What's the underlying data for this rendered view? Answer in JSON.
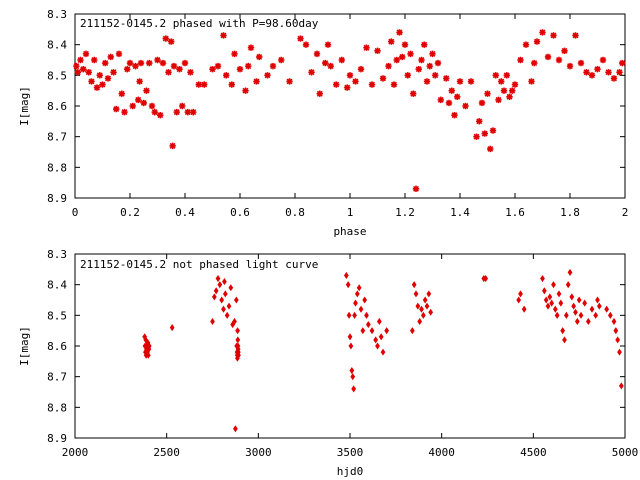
{
  "colors": {
    "points": "#e00000",
    "frame": "#000000",
    "background": "#ffffff"
  },
  "chart_data": [
    {
      "type": "scatter",
      "title": "211152-0145.2 phased with P=98.60day",
      "xlabel": "phase",
      "ylabel": "I[mag]",
      "xlim": [
        0,
        2
      ],
      "ylim": [
        8.3,
        8.9
      ],
      "y_inverted": true,
      "grid": false,
      "marker": "star",
      "xticks": [
        "0",
        "0.2",
        "0.4",
        "0.6",
        "0.8",
        "1",
        "1.2",
        "1.4",
        "1.6",
        "1.8",
        "2"
      ],
      "yticks": [
        "8.3",
        "8.4",
        "8.5",
        "8.6",
        "8.7",
        "8.8",
        "8.9"
      ],
      "series": [
        {
          "x": [
            0.005,
            0.01,
            0.02,
            0.03,
            0.04,
            0.05,
            0.06,
            0.07,
            0.08,
            0.09,
            0.1,
            0.11,
            0.12,
            0.13,
            0.14,
            0.15,
            0.16,
            0.17,
            0.18,
            0.19,
            0.2,
            0.21,
            0.22,
            0.23,
            0.235,
            0.24,
            0.25,
            0.26,
            0.27,
            0.28,
            0.29,
            0.3,
            0.31,
            0.32,
            0.33,
            0.34,
            0.35,
            0.355,
            0.36,
            0.37,
            0.38,
            0.39,
            0.4,
            0.41,
            0.42,
            0.43,
            0.45,
            0.47,
            0.5,
            0.52,
            0.54,
            0.55,
            0.57,
            0.58,
            0.6,
            0.62,
            0.63,
            0.64,
            0.66,
            0.67,
            0.7,
            0.72,
            0.75,
            0.78,
            0.82,
            0.84,
            0.86,
            0.88,
            0.89,
            0.91,
            0.92,
            0.93,
            0.95,
            0.97,
            0.99,
            1.0,
            1.02,
            1.04,
            1.06,
            1.08,
            1.1,
            1.12,
            1.14,
            1.15,
            1.16,
            1.17,
            1.18,
            1.19,
            1.2,
            1.21,
            1.22,
            1.23,
            1.24,
            1.25,
            1.26,
            1.27,
            1.28,
            1.29,
            1.3,
            1.31,
            1.32,
            1.33,
            1.35,
            1.36,
            1.37,
            1.38,
            1.39,
            1.4,
            1.42,
            1.44,
            1.46,
            1.47,
            1.48,
            1.49,
            1.5,
            1.51,
            1.52,
            1.53,
            1.54,
            1.55,
            1.56,
            1.57,
            1.58,
            1.59,
            1.6,
            1.62,
            1.64,
            1.66,
            1.67,
            1.68,
            1.7,
            1.72,
            1.74,
            1.76,
            1.78,
            1.8,
            1.82,
            1.84,
            1.86,
            1.88,
            1.9,
            1.92,
            1.94,
            1.96,
            1.98,
            1.99
          ],
          "y": [
            8.47,
            8.49,
            8.45,
            8.48,
            8.43,
            8.49,
            8.52,
            8.45,
            8.54,
            8.5,
            8.53,
            8.46,
            8.51,
            8.44,
            8.49,
            8.61,
            8.43,
            8.56,
            8.62,
            8.48,
            8.46,
            8.6,
            8.47,
            8.58,
            8.52,
            8.46,
            8.59,
            8.55,
            8.46,
            8.6,
            8.62,
            8.45,
            8.63,
            8.46,
            8.38,
            8.49,
            8.39,
            8.73,
            8.47,
            8.62,
            8.48,
            8.6,
            8.46,
            8.62,
            8.49,
            8.62,
            8.53,
            8.53,
            8.48,
            8.47,
            8.37,
            8.5,
            8.53,
            8.43,
            8.48,
            8.55,
            8.47,
            8.41,
            8.52,
            8.44,
            8.5,
            8.47,
            8.45,
            8.52,
            8.38,
            8.4,
            8.49,
            8.43,
            8.56,
            8.46,
            8.4,
            8.47,
            8.53,
            8.45,
            8.54,
            8.5,
            8.52,
            8.48,
            8.41,
            8.53,
            8.42,
            8.51,
            8.47,
            8.39,
            8.53,
            8.45,
            8.36,
            8.44,
            8.4,
            8.5,
            8.43,
            8.56,
            8.87,
            8.48,
            8.45,
            8.4,
            8.52,
            8.47,
            8.43,
            8.5,
            8.46,
            8.58,
            8.51,
            8.59,
            8.55,
            8.63,
            8.57,
            8.52,
            8.6,
            8.52,
            8.7,
            8.65,
            8.59,
            8.69,
            8.56,
            8.74,
            8.68,
            8.5,
            8.58,
            8.52,
            8.55,
            8.5,
            8.57,
            8.55,
            8.53,
            8.45,
            8.4,
            8.52,
            8.46,
            8.39,
            8.36,
            8.44,
            8.37,
            8.45,
            8.42,
            8.47,
            8.37,
            8.46,
            8.49,
            8.5,
            8.48,
            8.45,
            8.49,
            8.51,
            8.49,
            8.46
          ]
        }
      ]
    },
    {
      "type": "scatter",
      "title": "211152-0145.2 not phased light curve",
      "xlabel": "hjd0",
      "ylabel": "I[mag]",
      "xlim": [
        2000,
        5000
      ],
      "ylim": [
        8.3,
        8.9
      ],
      "y_inverted": true,
      "grid": false,
      "marker": "diamond",
      "xticks": [
        "2000",
        "2500",
        "3000",
        "3500",
        "4000",
        "4500",
        "5000"
      ],
      "yticks": [
        "8.3",
        "8.4",
        "8.5",
        "8.6",
        "8.7",
        "8.8",
        "8.9"
      ],
      "series": [
        {
          "x": [
            2380,
            2382,
            2384,
            2386,
            2388,
            2390,
            2392,
            2395,
            2398,
            2400,
            2403,
            2405,
            2530,
            2750,
            2760,
            2770,
            2780,
            2790,
            2800,
            2810,
            2815,
            2820,
            2830,
            2840,
            2850,
            2860,
            2870,
            2875,
            2880,
            2882,
            2884,
            2885,
            2886,
            2887,
            2888,
            2889,
            2890,
            2891,
            2892,
            3480,
            3490,
            3495,
            3500,
            3505,
            3510,
            3515,
            3520,
            3525,
            3530,
            3540,
            3550,
            3560,
            3570,
            3580,
            3590,
            3600,
            3620,
            3640,
            3650,
            3660,
            3670,
            3680,
            3700,
            3840,
            3850,
            3860,
            3870,
            3880,
            3890,
            3900,
            3910,
            3920,
            3930,
            3940,
            4230,
            4240,
            4420,
            4430,
            4450,
            4550,
            4560,
            4570,
            4580,
            4590,
            4600,
            4610,
            4620,
            4630,
            4640,
            4650,
            4660,
            4670,
            4680,
            4690,
            4700,
            4710,
            4720,
            4730,
            4740,
            4750,
            4760,
            4780,
            4800,
            4820,
            4840,
            4850,
            4860,
            4900,
            4920,
            4940,
            4950,
            4960,
            4970,
            4980
          ],
          "y": [
            8.57,
            8.6,
            8.62,
            8.58,
            8.63,
            8.61,
            8.6,
            8.62,
            8.59,
            8.63,
            8.61,
            8.6,
            8.54,
            8.52,
            8.44,
            8.42,
            8.38,
            8.4,
            8.45,
            8.48,
            8.39,
            8.43,
            8.5,
            8.47,
            8.41,
            8.53,
            8.52,
            8.87,
            8.45,
            8.6,
            8.62,
            8.63,
            8.64,
            8.55,
            8.58,
            8.6,
            8.61,
            8.62,
            8.63,
            8.37,
            8.4,
            8.5,
            8.57,
            8.6,
            8.68,
            8.7,
            8.74,
            8.5,
            8.46,
            8.43,
            8.41,
            8.48,
            8.55,
            8.45,
            8.5,
            8.53,
            8.55,
            8.58,
            8.6,
            8.52,
            8.57,
            8.62,
            8.55,
            8.55,
            8.4,
            8.43,
            8.47,
            8.52,
            8.48,
            8.5,
            8.45,
            8.47,
            8.43,
            8.49,
            8.38,
            8.38,
            8.45,
            8.43,
            8.48,
            8.38,
            8.42,
            8.45,
            8.47,
            8.44,
            8.46,
            8.4,
            8.48,
            8.5,
            8.43,
            8.46,
            8.55,
            8.58,
            8.5,
            8.4,
            8.36,
            8.44,
            8.47,
            8.49,
            8.52,
            8.45,
            8.5,
            8.46,
            8.52,
            8.48,
            8.5,
            8.45,
            8.47,
            8.48,
            8.5,
            8.52,
            8.55,
            8.58,
            8.62,
            8.73
          ]
        }
      ]
    }
  ]
}
